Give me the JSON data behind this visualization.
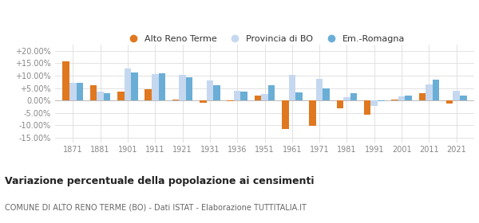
{
  "years": [
    1871,
    1881,
    1901,
    1911,
    1921,
    1931,
    1936,
    1951,
    1961,
    1971,
    1981,
    1991,
    2001,
    2011,
    2021
  ],
  "alto_reno": [
    15.8,
    6.2,
    3.5,
    4.6,
    0.5,
    -0.8,
    -0.3,
    2.0,
    -11.5,
    -10.2,
    -3.0,
    -5.7,
    0.5,
    3.1,
    -1.2
  ],
  "provincia_bo": [
    7.0,
    3.5,
    13.0,
    10.5,
    10.2,
    8.2,
    4.0,
    2.5,
    10.3,
    8.8,
    1.3,
    -2.2,
    1.8,
    6.5,
    3.8
  ],
  "em_romagna": [
    7.2,
    2.8,
    11.2,
    10.8,
    9.4,
    6.2,
    3.6,
    6.2,
    3.3,
    4.8,
    3.0,
    -0.4,
    2.0,
    8.5,
    2.0
  ],
  "color_alto_reno": "#e07820",
  "color_provincia": "#c5d8f0",
  "color_em_romagna": "#6aaed6",
  "title": "Variazione percentuale della popolazione ai censimenti",
  "subtitle": "COMUNE DI ALTO RENO TERME (BO) - Dati ISTAT - Elaborazione TUTTITALIA.IT",
  "legend_labels": [
    "Alto Reno Terme",
    "Provincia di BO",
    "Em.-Romagna"
  ],
  "ylim": [
    -17.0,
    22.5
  ],
  "yticks": [
    -15,
    -10,
    -5,
    0,
    5,
    10,
    15,
    20
  ],
  "background_color": "#ffffff",
  "grid_color": "#dddddd",
  "tick_color": "#888888",
  "title_color": "#222222",
  "subtitle_color": "#666666"
}
